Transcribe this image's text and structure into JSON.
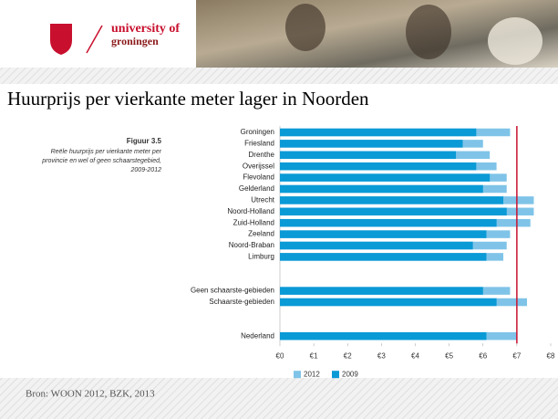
{
  "header": {
    "logo_line1": "university of",
    "logo_line2": "groningen"
  },
  "title": "Huurprijs per vierkante meter lager in Noorden",
  "figure_caption": {
    "label": "Figuur 3.5",
    "lines": [
      "Reële huurprijs per vierkante meter per",
      "provincie en wel of geen schaarstegebied,",
      "2009-2012"
    ]
  },
  "source": "Bron: WOON 2012, BZK, 2013",
  "chart_data": {
    "type": "bar",
    "orientation": "horizontal",
    "categories": [
      "Groningen",
      "Friesland",
      "Drenthe",
      "Overijssel",
      "Flevoland",
      "Gelderland",
      "Utrecht",
      "Noord-Holland",
      "Zuid-Holland",
      "Zeeland",
      "Noord-Braban",
      "Limburg",
      null,
      null,
      "Geen schaarste-gebieden",
      "Schaarste-gebieden",
      null,
      null,
      "Nederland"
    ],
    "series": [
      {
        "name": "2012",
        "color": "#7fc4e8",
        "values": [
          6.8,
          6.0,
          6.2,
          6.4,
          6.7,
          6.7,
          7.5,
          7.5,
          7.4,
          6.8,
          6.7,
          6.6,
          null,
          null,
          6.8,
          7.3,
          null,
          null,
          7.0
        ]
      },
      {
        "name": "2009",
        "color": "#0a9ad6",
        "values": [
          5.8,
          5.4,
          5.2,
          5.8,
          6.2,
          6.0,
          6.6,
          6.7,
          6.4,
          6.1,
          5.7,
          6.1,
          null,
          null,
          6.0,
          6.4,
          null,
          null,
          6.1
        ]
      }
    ],
    "xlim": [
      0,
      8
    ],
    "xticks": [
      {
        "value": 0,
        "label": "€0"
      },
      {
        "value": 1,
        "label": "€1"
      },
      {
        "value": 2,
        "label": "€2"
      },
      {
        "value": 3,
        "label": "€3"
      },
      {
        "value": 4,
        "label": "€4"
      },
      {
        "value": 5,
        "label": "€5"
      },
      {
        "value": 6,
        "label": "€6"
      },
      {
        "value": 7,
        "label": "€7"
      },
      {
        "value": 8,
        "label": "€8"
      }
    ],
    "reference_line": {
      "value": 7,
      "color": "#c8102e"
    },
    "legend": "bottom-left"
  }
}
